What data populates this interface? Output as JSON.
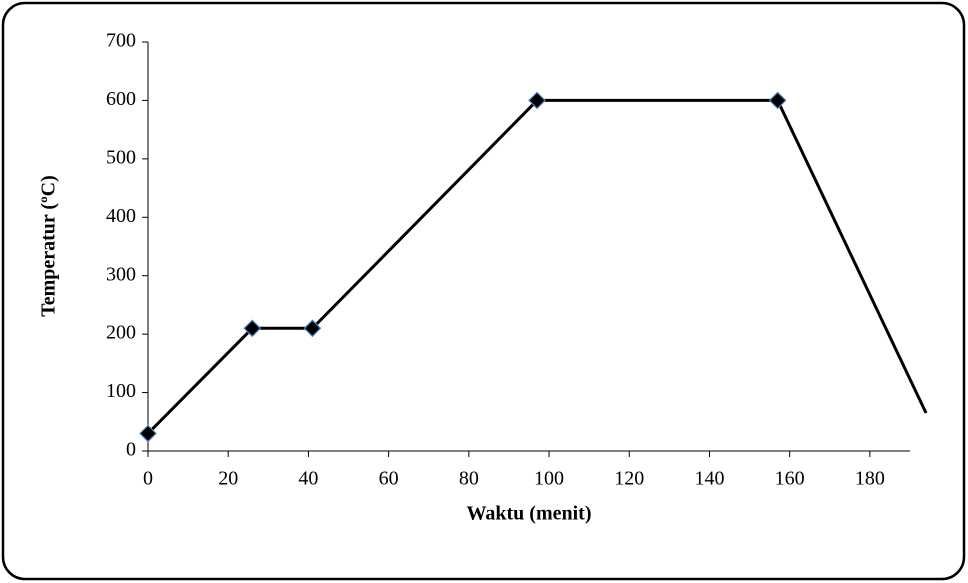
{
  "chart_data": {
    "type": "line",
    "x_label": "Waktu (menit)",
    "y_label": "Temperatur (ºC)",
    "x": [
      0,
      26,
      41,
      97,
      157,
      194
    ],
    "values": [
      30,
      210,
      210,
      600,
      600,
      65
    ],
    "color": "#000000",
    "marker_color": "#000000",
    "marker_edge_color": "#4f81bd",
    "xlim": [
      0,
      190
    ],
    "xticks": [
      0,
      20,
      40,
      60,
      80,
      100,
      120,
      140,
      160,
      180
    ],
    "ylim": [
      0,
      700
    ],
    "yticks": [
      0,
      100,
      200,
      300,
      400,
      500,
      600,
      700
    ],
    "grid": false
  }
}
